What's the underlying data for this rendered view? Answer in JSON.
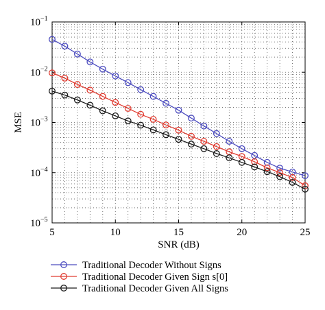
{
  "chart_data": {
    "type": "line",
    "xlabel": "SNR (dB)",
    "ylabel": "MSE",
    "xlim": [
      5,
      25
    ],
    "ylim": [
      1e-05,
      0.1
    ],
    "yscale": "log",
    "grid": "dotted major and minor",
    "legend_position": "below plot",
    "x_ticks": [
      "5",
      "10",
      "15",
      "20",
      "25"
    ],
    "y_ticks": [
      {
        "base": "10",
        "exp": "−1",
        "value": 0.1
      },
      {
        "base": "10",
        "exp": "−2",
        "value": 0.01
      },
      {
        "base": "10",
        "exp": "−3",
        "value": 0.001
      },
      {
        "base": "10",
        "exp": "−4",
        "value": 0.0001
      },
      {
        "base": "10",
        "exp": "−5",
        "value": 1e-05
      }
    ],
    "x": [
      5,
      6,
      7,
      8,
      9,
      10,
      11,
      12,
      13,
      14,
      15,
      16,
      17,
      18,
      19,
      20,
      21,
      22,
      23,
      24,
      25
    ],
    "series": [
      {
        "name": "Traditional Decoder Without Signs",
        "color": "#4c4cbf",
        "marker": "circle",
        "values": [
          0.045,
          0.033,
          0.023,
          0.016,
          0.0115,
          0.0084,
          0.0062,
          0.0045,
          0.0033,
          0.0024,
          0.00175,
          0.00122,
          0.00085,
          0.0006,
          0.00042,
          0.0003,
          0.00022,
          0.00016,
          0.000123,
          0.000103,
          8.7e-05
        ]
      },
      {
        "name": "Traditional Decoder Given Sign s[0]",
        "color": "#e03c31",
        "marker": "circle",
        "values": [
          0.0097,
          0.0076,
          0.0057,
          0.0044,
          0.0033,
          0.0025,
          0.0019,
          0.00145,
          0.00115,
          0.00089,
          0.0007,
          0.00053,
          0.00042,
          0.00033,
          0.00026,
          0.00021,
          0.000165,
          0.000125,
          0.0001,
          8e-05,
          5.5e-05
        ]
      },
      {
        "name": "Traditional Decoder Given All Signs",
        "color": "#1a1a1a",
        "marker": "circle",
        "values": [
          0.0042,
          0.0035,
          0.0028,
          0.0022,
          0.0017,
          0.00135,
          0.00107,
          0.00088,
          0.00071,
          0.00057,
          0.00046,
          0.00037,
          0.0003,
          0.00024,
          0.000197,
          0.00016,
          0.00013,
          0.000105,
          8.3e-05,
          6.4e-05,
          4.7e-05
        ]
      }
    ]
  }
}
